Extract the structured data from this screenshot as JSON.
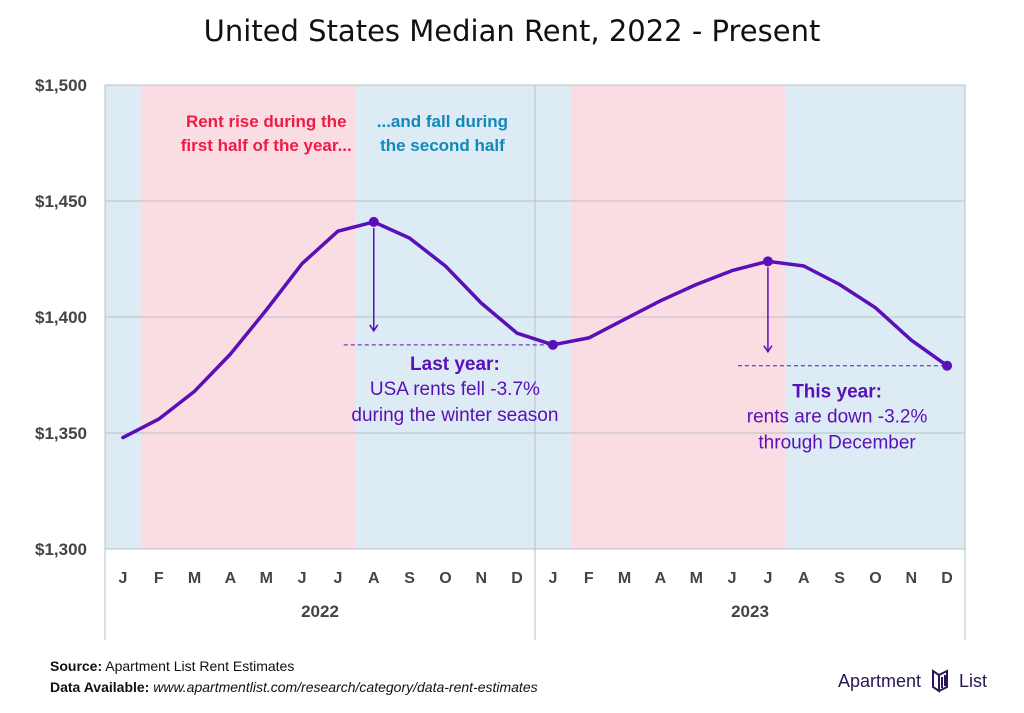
{
  "title": "United States Median Rent, 2022 - Present",
  "chart_data": {
    "type": "line",
    "title": "United States Median Rent, 2022 - Present",
    "categories": [
      "J",
      "F",
      "M",
      "A",
      "M",
      "J",
      "J",
      "A",
      "S",
      "O",
      "N",
      "D",
      "J",
      "F",
      "M",
      "A",
      "M",
      "J",
      "J",
      "A",
      "S",
      "O",
      "N",
      "D"
    ],
    "year_groups": [
      {
        "label": "2022",
        "start": 0,
        "end": 11
      },
      {
        "label": "2023",
        "start": 12,
        "end": 23
      }
    ],
    "series": [
      {
        "values": [
          1348,
          1356,
          1368,
          1384,
          1403,
          1423,
          1437,
          1441,
          1434,
          1422,
          1406,
          1393,
          1388,
          1391,
          1399,
          1407,
          1414,
          1420,
          1424,
          1422,
          1414,
          1404,
          1390,
          1379
        ],
        "color": "#5b0fb8"
      }
    ],
    "yticks": [
      1300,
      1350,
      1400,
      1450,
      1500
    ],
    "ytick_labels": [
      "$1,300",
      "$1,350",
      "$1,400",
      "$1,450",
      "$1,500"
    ],
    "ylim": [
      1300,
      1500
    ],
    "grid": true,
    "shading": [
      {
        "start": 0,
        "end": 1,
        "color": "#dcebf4"
      },
      {
        "start": 1,
        "end": 7,
        "color": "#fadde3"
      },
      {
        "start": 7,
        "end": 13,
        "color": "#dcebf4"
      },
      {
        "start": 13,
        "end": 19,
        "color": "#fadde3"
      },
      {
        "start": 19,
        "end": 24,
        "color": "#dcebf4"
      }
    ],
    "highlight_points": [
      {
        "index": 7,
        "value": 1441
      },
      {
        "index": 12,
        "value": 1388
      },
      {
        "index": 18,
        "value": 1424
      },
      {
        "index": 23,
        "value": 1379
      }
    ],
    "annotations": {
      "rise": [
        "Rent rise during the",
        "first half of the year..."
      ],
      "fall": [
        "...and fall during",
        "the second half"
      ],
      "last_year_head": "Last year:",
      "last_year_body": [
        "USA rents fell -3.7%",
        "during the winter season"
      ],
      "this_year_head": "This year:",
      "this_year_body": [
        "rents are down -3.2%",
        "through December"
      ]
    }
  },
  "footer": {
    "source_label": "Source:",
    "source_text": "Apartment List Rent Estimates",
    "data_label": "Data Available:",
    "data_text": "www.apartmentlist.com/research/category/data-rent-estimates"
  },
  "logo": {
    "left": "Apartment",
    "right": "List"
  }
}
